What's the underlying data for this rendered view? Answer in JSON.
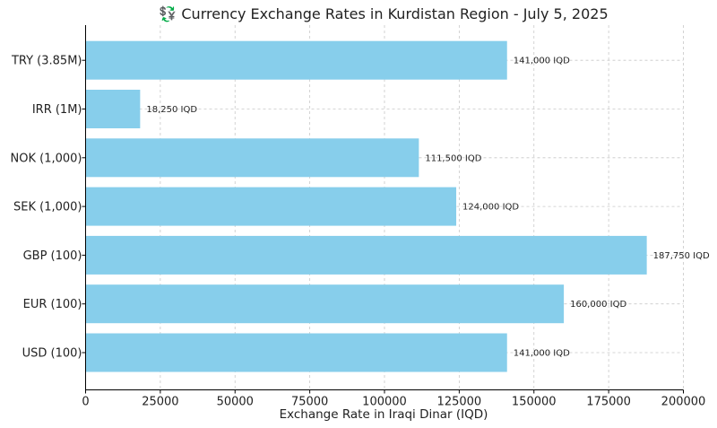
{
  "chart_data": {
    "type": "bar",
    "orientation": "horizontal",
    "title": "💱 Currency Exchange Rates in Kurdistan Region - July 5, 2025",
    "xlabel": "Exchange Rate in Iraqi Dinar (IQD)",
    "ylabel": "",
    "xlim": [
      0,
      200000
    ],
    "xticks": [
      0,
      25000,
      50000,
      75000,
      100000,
      125000,
      150000,
      175000,
      200000
    ],
    "grid": true,
    "bar_color": "#87ceeb",
    "categories": [
      "USD (100)",
      "EUR (100)",
      "GBP (100)",
      "SEK (1,000)",
      "NOK (1,000)",
      "IRR (1M)",
      "TRY (3.85M)"
    ],
    "values": [
      141000,
      160000,
      187750,
      124000,
      111500,
      18250,
      141000
    ],
    "data_labels": [
      "141,000 IQD",
      "160,000 IQD",
      "187,750 IQD",
      "124,000 IQD",
      "111,500 IQD",
      "18,250 IQD",
      "141,000 IQD"
    ]
  }
}
